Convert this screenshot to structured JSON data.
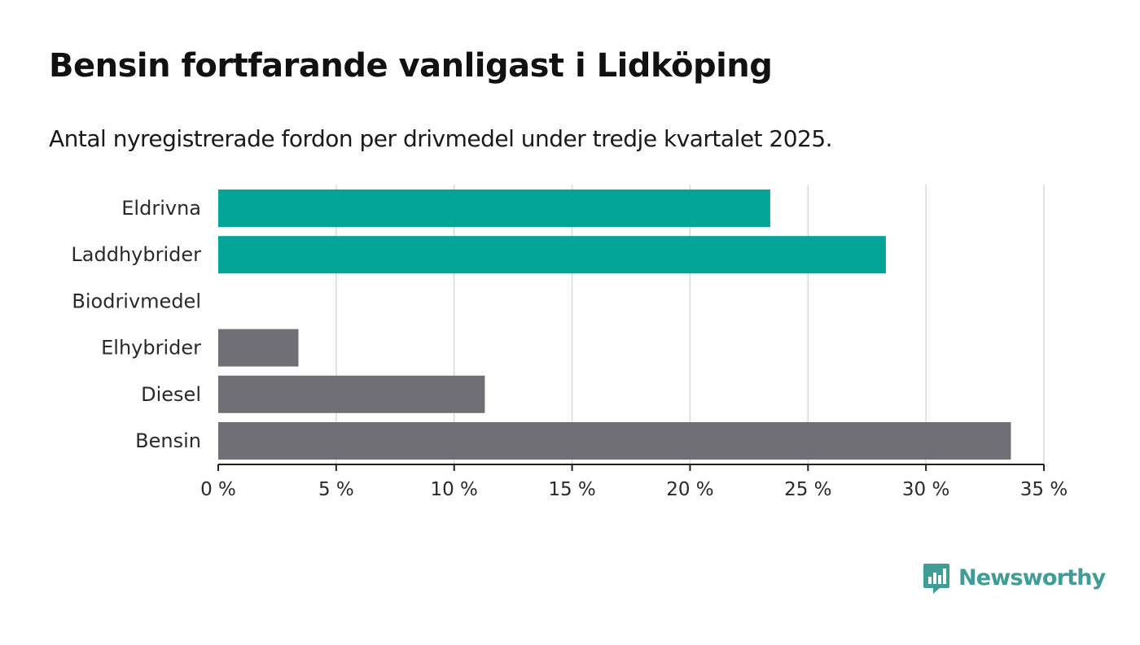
{
  "title": "Bensin fortfarande vanligast i Lidköping",
  "subtitle": "Antal nyregistrerade fordon per drivmedel under tredje kvartalet 2025.",
  "brand": {
    "name": "Newsworthy",
    "logo_icon": "bar-chart-speech-bubble-icon"
  },
  "colors": {
    "highlight": "#02a598",
    "default": "#706f75",
    "grid": "#d9d9d9",
    "axis": "#222222",
    "brand": "#3f9c97"
  },
  "chart_data": {
    "type": "bar",
    "orientation": "horizontal",
    "categories": [
      "Eldrivna",
      "Laddhybrider",
      "Biodrivmedel",
      "Elhybrider",
      "Diesel",
      "Bensin"
    ],
    "values": [
      23.4,
      28.3,
      0,
      3.4,
      11.3,
      33.6
    ],
    "highlight": [
      true,
      true,
      false,
      false,
      false,
      false
    ],
    "xlim": [
      0,
      35
    ],
    "xticks": [
      0,
      5,
      10,
      15,
      20,
      25,
      30,
      35
    ],
    "xtick_labels": [
      "0 %",
      "5 %",
      "10 %",
      "15 %",
      "20 %",
      "25 %",
      "30 %",
      "35 %"
    ],
    "xlabel": "",
    "ylabel": "",
    "grid": true,
    "legend": "none"
  }
}
